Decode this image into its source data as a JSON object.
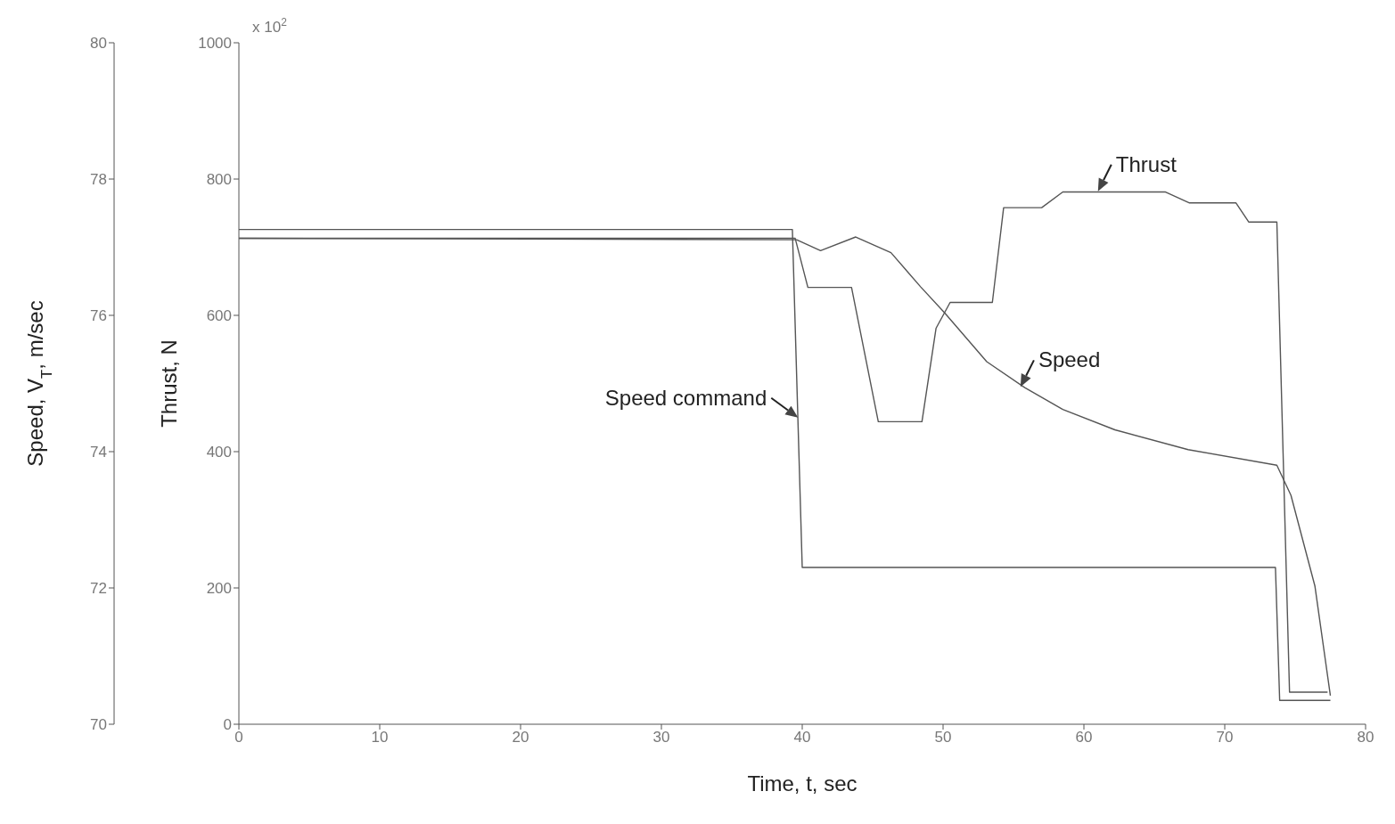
{
  "chart_data": {
    "type": "line",
    "xlabel": "Time, t, sec",
    "ylabel": "Thrust, N",
    "y2label": "Speed, V$_{T}$,  m/sec",
    "xlim": [
      0,
      80
    ],
    "xticks": [
      0,
      10,
      20,
      30,
      40,
      50,
      60,
      70,
      80
    ],
    "ylim": [
      0,
      1000
    ],
    "yticks": [
      0,
      200,
      400,
      600,
      800,
      1000
    ],
    "y2lim": [
      70,
      80
    ],
    "y2ticks": [
      70,
      72,
      74,
      76,
      78,
      80
    ],
    "marker": "none",
    "line_style": "solid",
    "series": [
      {
        "color": "#555555",
        "axis": "y2",
        "x": [
          0,
          39.3,
          40.0,
          73.6,
          73.9,
          77.5
        ],
        "values": [
          77.26,
          77.26,
          72.3,
          72.3,
          70.35,
          70.35
        ]
      },
      {
        "color": "#555555",
        "axis": "y2",
        "x": [
          0,
          39.6,
          41.3,
          43.8,
          46.3,
          48.4,
          50.1,
          53.1,
          55.8,
          58.5,
          62.2,
          67.4,
          73.7,
          74.7,
          76.4,
          77.5
        ],
        "values": [
          77.13,
          77.11,
          76.95,
          77.15,
          76.92,
          76.42,
          76.04,
          75.32,
          74.94,
          74.62,
          74.32,
          74.03,
          73.8,
          73.36,
          72.03,
          70.42
        ]
      },
      {
        "color": "#555555",
        "x": [
          0,
          39.5,
          40.4,
          43.5,
          45.4,
          48.5,
          49.5,
          50.5,
          53.5,
          54.3,
          57,
          58.5,
          65.8,
          67.5,
          70.8,
          71.7,
          73.7,
          74.6,
          77.3
        ],
        "values": [
          713,
          713,
          641,
          641,
          444,
          444,
          581,
          619,
          619,
          758,
          758,
          781,
          781,
          765,
          765,
          737,
          737,
          47,
          47
        ]
      }
    ],
    "annotations": [
      "x 10$^{2}$",
      {
        "text": "Speed command",
        "x": 39.7,
        "y": 450
      },
      {
        "text": "Speed",
        "x": 55.5,
        "y": 495
      },
      {
        "text": "Thrust",
        "x": 61,
        "y": 782
      }
    ]
  }
}
